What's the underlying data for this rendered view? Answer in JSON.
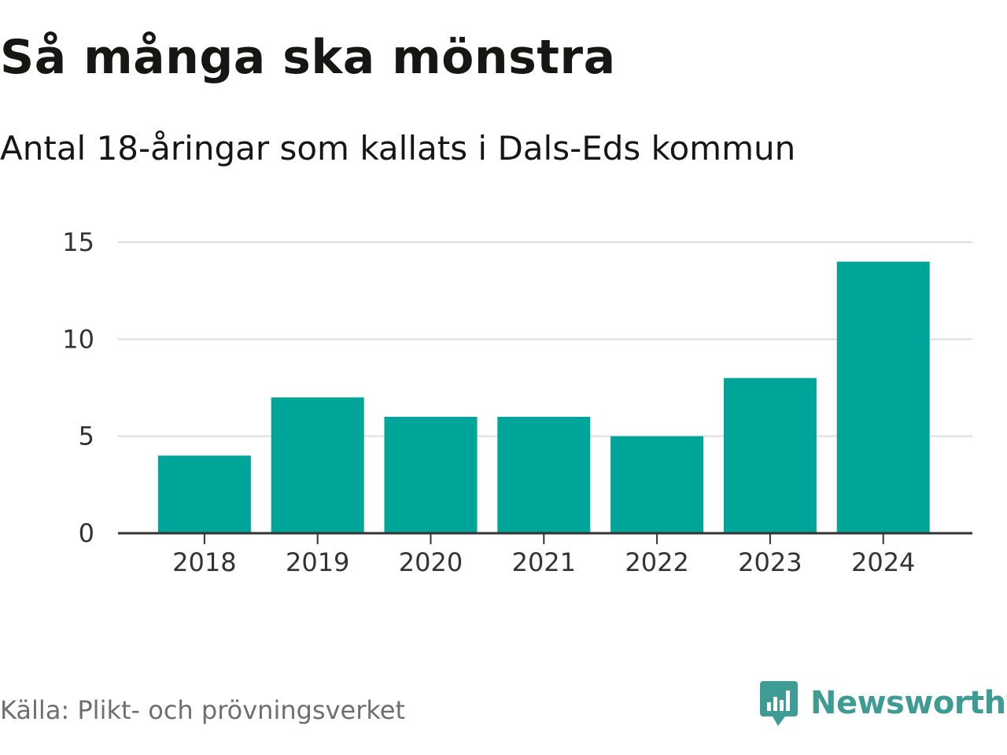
{
  "title": "Så många ska mönstra",
  "subtitle": "Antal 18-åringar som kallats i Dals-Eds kommun",
  "source": "Källa: Plikt- och prövningsverket",
  "brand": {
    "name": "Newsworthy",
    "logo_icon": "newsworthy-chat-bars-icon",
    "color": "#3f9c94"
  },
  "colors": {
    "bar": "#00a59a",
    "grid": "#dddddd",
    "axis": "#333333",
    "tick_text": "#333333"
  },
  "chart_data": {
    "type": "bar",
    "title": "Så många ska mönstra",
    "subtitle": "Antal 18-åringar som kallats i Dals-Eds kommun",
    "xlabel": "",
    "ylabel": "",
    "categories": [
      "2018",
      "2019",
      "2020",
      "2021",
      "2022",
      "2023",
      "2024"
    ],
    "values": [
      4,
      7,
      6,
      6,
      5,
      8,
      14
    ],
    "ylim": [
      0,
      15
    ],
    "yticks": [
      0,
      5,
      10,
      15
    ],
    "grid": true,
    "legend": "none"
  }
}
